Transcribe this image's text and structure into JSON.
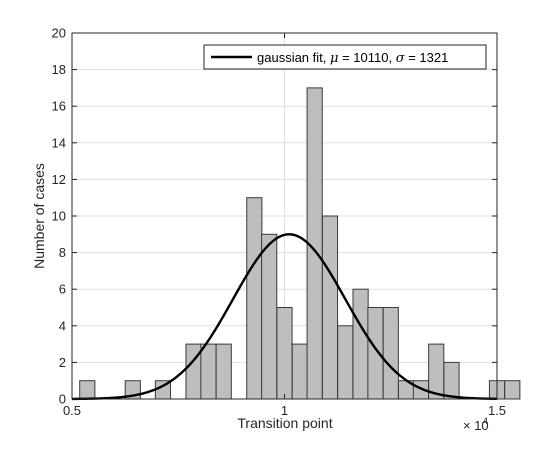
{
  "chart_data": {
    "type": "bar",
    "subtype": "histogram",
    "xlabel": "Transition point",
    "ylabel": "Number of cases",
    "xlim": [
      5000,
      15000
    ],
    "ylim": [
      0,
      20
    ],
    "x_ticks": [
      0.5,
      1,
      1.5
    ],
    "x_tick_labels": [
      "0.5",
      "1",
      "1.5"
    ],
    "x_exponent_base": "× 10",
    "x_exponent_power": "4",
    "y_ticks": [
      0,
      2,
      4,
      6,
      8,
      10,
      12,
      14,
      16,
      18,
      20
    ],
    "bin_width": 357,
    "bins": [
      {
        "x": 5360,
        "count": 1
      },
      {
        "x": 6430,
        "count": 1
      },
      {
        "x": 7140,
        "count": 1
      },
      {
        "x": 7860,
        "count": 3
      },
      {
        "x": 8210,
        "count": 3
      },
      {
        "x": 8570,
        "count": 3
      },
      {
        "x": 9290,
        "count": 11
      },
      {
        "x": 9640,
        "count": 9
      },
      {
        "x": 10000,
        "count": 5
      },
      {
        "x": 10360,
        "count": 3
      },
      {
        "x": 10710,
        "count": 17
      },
      {
        "x": 11070,
        "count": 10
      },
      {
        "x": 11430,
        "count": 4
      },
      {
        "x": 11790,
        "count": 6
      },
      {
        "x": 12140,
        "count": 5
      },
      {
        "x": 12500,
        "count": 5
      },
      {
        "x": 12860,
        "count": 1
      },
      {
        "x": 13210,
        "count": 1
      },
      {
        "x": 13570,
        "count": 3
      },
      {
        "x": 13930,
        "count": 2
      },
      {
        "x": 15000,
        "count": 1
      },
      {
        "x": 15360,
        "count": 1
      }
    ],
    "fit": {
      "label_prefix": "gaussian fit, ",
      "mu_symbol": "μ",
      "mu_value": "10110",
      "sigma_symbol": "σ",
      "sigma_value": "1321",
      "mu": 10110,
      "sigma": 1321,
      "peak": 9
    },
    "legend_position": "top-right",
    "grid": true,
    "colors": {
      "bar_fill": "#bebebe",
      "bar_edge": "#3a3a3a",
      "fit_line": "#000000",
      "grid": "#dfdfdf",
      "axis": "#262626"
    }
  }
}
